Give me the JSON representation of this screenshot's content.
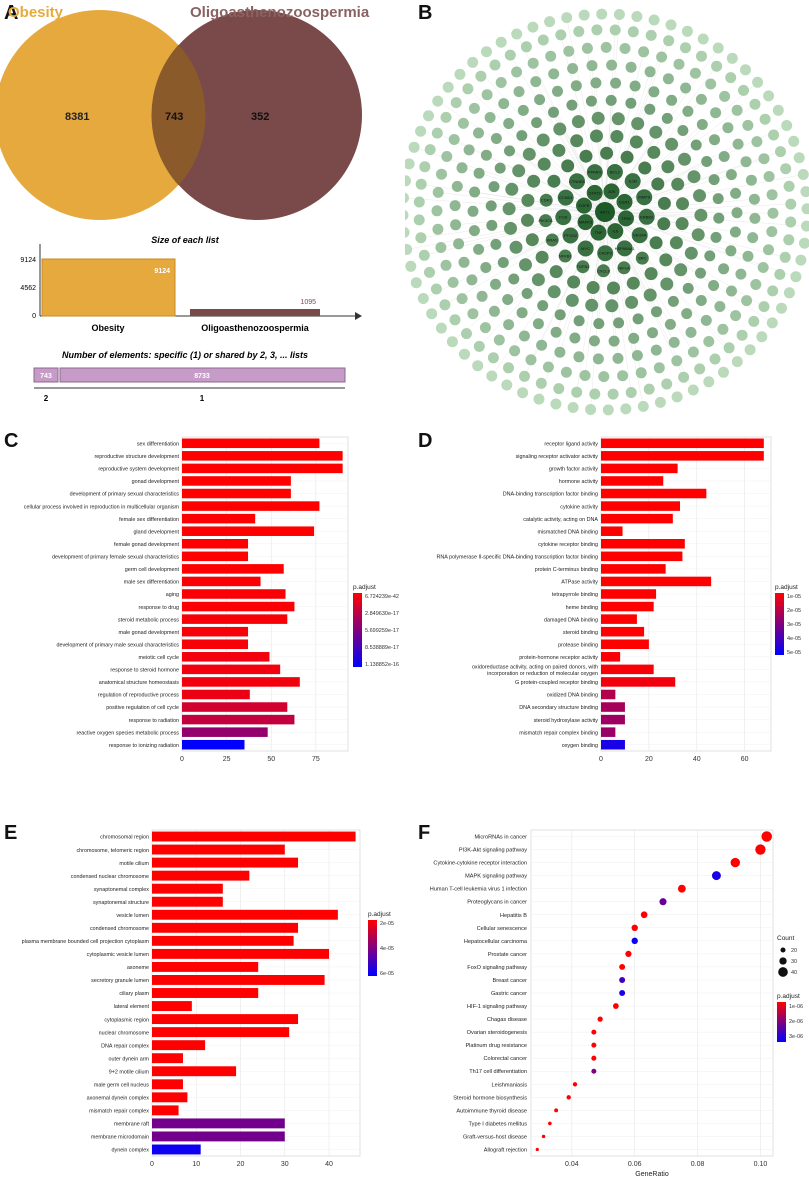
{
  "panel_labels": {
    "a": "A",
    "b": "B",
    "c": "C",
    "d": "D",
    "e": "E",
    "f": "F"
  },
  "colors": {
    "obesity": "#E6A93D",
    "oligo": "#7A4A4A",
    "overlap": "#8A5A2A",
    "purple": "#C79BC8",
    "red": "#FF0000",
    "blue": "#0000FF"
  },
  "venn": {
    "set1": "Obesity",
    "set2": "Oligoasthenozoospermia",
    "only1": "8381",
    "both": "743",
    "only2": "352",
    "size_title": "Size of each list",
    "size_ticks": [
      "9124",
      "4562",
      "0"
    ],
    "obesity_size": "9124",
    "oligo_size": "1095",
    "elements_title": "Number of elements: specific (1) or shared by 2, 3, ... lists",
    "shared_value": "743",
    "specific_value": "8733",
    "shared_label": "2",
    "specific_label": "1"
  },
  "network": {
    "description_nodes": [
      "AKT1",
      "TP53",
      "IL6",
      "TNF",
      "MAPK3",
      "EGFR",
      "STAT3",
      "JUN",
      "ESR1",
      "VEGFA",
      "HSP90AA1",
      "CASP3",
      "MYC",
      "PTGS2",
      "FOS",
      "CCND1",
      "CTNNB1",
      "PPARG",
      "BCL2",
      "IL1B",
      "MMP9",
      "ERBB2",
      "SRC",
      "HIF1A",
      "CXCL8",
      "TGFB1",
      "NFKB1",
      "KRAS",
      "PIK3CA",
      "CDK1"
    ]
  },
  "chart_data": [
    {
      "id": "C",
      "type": "bar",
      "categories": [
        "sex differentiation",
        "reproductive structure development",
        "reproductive system development",
        "gonad development",
        "development of primary sexual characteristics",
        "cellular process involved in reproduction in multicellular organism",
        "female sex differentiation",
        "gland development",
        "female gonad development",
        "development of primary female sexual characteristics",
        "germ cell development",
        "male sex differentiation",
        "aging",
        "response to drug",
        "steroid metabolic process",
        "male gonad development",
        "development of primary male sexual characteristics",
        "meiotic cell cycle",
        "response to steroid hormone",
        "anatomical structure homeostasis",
        "regulation of reproductive process",
        "positive regulation of cell cycle",
        "response to radiation",
        "reactive oxygen species metabolic process",
        "response to ionizing radiation"
      ],
      "values": [
        77,
        90,
        90,
        61,
        61,
        77,
        41,
        74,
        37,
        37,
        57,
        44,
        58,
        63,
        59,
        37,
        37,
        49,
        55,
        66,
        38,
        59,
        63,
        48,
        35
      ],
      "padj_frac": [
        0,
        0,
        0,
        0,
        0,
        0,
        0,
        0,
        0,
        0,
        0,
        0.02,
        0.02,
        0.02,
        0.03,
        0.03,
        0.03,
        0.05,
        0.05,
        0.05,
        0.08,
        0.18,
        0.24,
        0.42,
        1
      ],
      "xticks": [
        "0",
        "25",
        "50",
        "75"
      ],
      "xlim": [
        0,
        93
      ],
      "legend_title": "p.adjust",
      "legend_labels": [
        "6.724239e-42",
        "2.849630e-17",
        "5.699259e-17",
        "8.538889e-17",
        "1.138852e-16"
      ]
    },
    {
      "id": "D",
      "type": "bar",
      "categories": [
        "receptor ligand activity",
        "signaling receptor activator activity",
        "growth factor activity",
        "hormone activity",
        "DNA-binding transcription factor binding",
        "cytokine activity",
        "catalytic activity, acting on DNA",
        "mismatched DNA binding",
        "cytokine receptor binding",
        "RNA polymerase II-specific DNA-binding transcription factor binding",
        "protein C-terminus binding",
        "ATPase activity",
        "tetrapyrrole binding",
        "heme binding",
        "damaged DNA binding",
        "steroid binding",
        "protease binding",
        "protein-hormone receptor activity",
        "oxidoreductase activity, acting on paired donors, with incorporation or reduction of molecular oxygen",
        "G protein-coupled receptor binding",
        "oxidized DNA binding",
        "DNA secondary structure binding",
        "steroid hydroxylase activity",
        "mismatch repair complex binding",
        "oxygen binding"
      ],
      "values": [
        68,
        68,
        32,
        26,
        44,
        33,
        30,
        9,
        35,
        34,
        27,
        46,
        23,
        22,
        15,
        18,
        20,
        8,
        22,
        31,
        6,
        10,
        10,
        6,
        10
      ],
      "padj_frac": [
        0,
        0,
        0,
        0,
        0,
        0,
        0,
        0,
        0,
        0,
        0,
        0,
        0,
        0,
        0,
        0,
        0,
        0.02,
        0.03,
        0.05,
        0.3,
        0.35,
        0.38,
        0.4,
        0.9
      ],
      "xticks": [
        "0",
        "20",
        "40",
        "60"
      ],
      "xlim": [
        0,
        71
      ],
      "legend_title": "p.adjust",
      "legend_labels": [
        "1e-05",
        "2e-05",
        "3e-05",
        "4e-05",
        "5e-05"
      ]
    },
    {
      "id": "E",
      "type": "bar",
      "categories": [
        "chromosomal region",
        "chromosome, telomeric region",
        "motile cilium",
        "condensed nuclear chromosome",
        "synaptonemal complex",
        "synaptonemal structure",
        "vesicle lumen",
        "condensed chromosome",
        "plasma membrane bounded cell projection cytoplasm",
        "cytoplasmic vesicle lumen",
        "axoneme",
        "secretory granule lumen",
        "ciliary plasm",
        "lateral element",
        "cytoplasmic region",
        "nuclear chromosome",
        "DNA repair complex",
        "outer dynein arm",
        "9+2 motile cilium",
        "male germ cell nucleus",
        "axonemal dynein complex",
        "mismatch repair complex",
        "membrane raft",
        "membrane microdomain",
        "dynein complex"
      ],
      "values": [
        46,
        30,
        33,
        22,
        16,
        16,
        42,
        33,
        32,
        40,
        24,
        39,
        24,
        9,
        33,
        31,
        12,
        7,
        19,
        7,
        8,
        6,
        30,
        30,
        11
      ],
      "padj_frac": [
        0,
        0,
        0,
        0,
        0,
        0,
        0,
        0,
        0,
        0,
        0,
        0,
        0,
        0,
        0,
        0,
        0,
        0,
        0,
        0,
        0,
        0,
        0.55,
        0.55,
        0.95
      ],
      "xticks": [
        "0",
        "10",
        "20",
        "30",
        "40"
      ],
      "xlim": [
        0,
        47
      ],
      "legend_title": "p.adjust",
      "legend_labels": [
        "2e-05",
        "4e-05",
        "6e-05"
      ]
    },
    {
      "id": "F",
      "type": "scatter",
      "categories": [
        "MicroRNAs in cancer",
        "PI3K-Akt signaling pathway",
        "Cytokine-cytokine receptor interaction",
        "MAPK signaling pathway",
        "Human T-cell leukemia virus 1 infection",
        "Proteoglycans in cancer",
        "Hepatitis B",
        "Cellular senescence",
        "Hepatocellular carcinoma",
        "Prostate cancer",
        "FoxO signaling pathway",
        "Breast cancer",
        "Gastric cancer",
        "HIF-1 signaling pathway",
        "Chagas disease",
        "Ovarian steroidogenesis",
        "Platinum drug resistance",
        "Colorectal cancer",
        "Th17 cell differentiation",
        "Leishmaniasis",
        "Steroid hormone biosynthesis",
        "Autoimmune thyroid disease",
        "Type I diabetes mellitus",
        "Graft-versus-host disease",
        "Allograft rejection"
      ],
      "x": [
        0.102,
        0.1,
        0.092,
        0.086,
        0.075,
        0.069,
        0.063,
        0.06,
        0.06,
        0.058,
        0.056,
        0.056,
        0.056,
        0.054,
        0.049,
        0.047,
        0.047,
        0.047,
        0.047,
        0.041,
        0.039,
        0.035,
        0.033,
        0.031,
        0.029
      ],
      "count": [
        44,
        43,
        39,
        37,
        32,
        29,
        27,
        26,
        26,
        25,
        24,
        24,
        24,
        23,
        21,
        20,
        20,
        20,
        20,
        17,
        17,
        15,
        14,
        13,
        12
      ],
      "padj_frac": [
        0,
        0,
        0,
        0.9,
        0,
        0.6,
        0,
        0,
        0.95,
        0,
        0,
        0.75,
        0.9,
        0,
        0,
        0,
        0,
        0,
        0.5,
        0,
        0,
        0,
        0,
        0,
        0
      ],
      "xticks": [
        "0.04",
        "0.06",
        "0.08",
        "0.10"
      ],
      "xlim": [
        0.027,
        0.104
      ],
      "xlabel": "GeneRatio",
      "size_legend_title": "Count",
      "size_legend_labels": [
        "20",
        "30",
        "40"
      ],
      "legend_title": "p.adjust",
      "legend_labels": [
        "1e-06",
        "2e-06",
        "3e-06"
      ]
    }
  ]
}
